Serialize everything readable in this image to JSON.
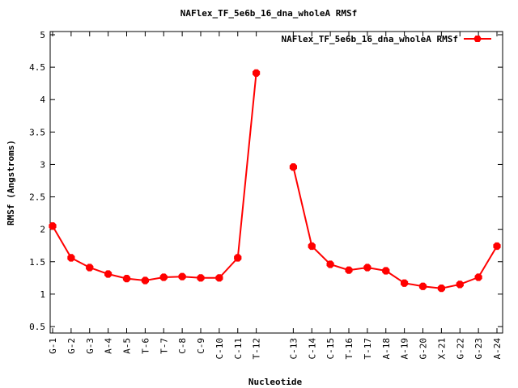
{
  "chart_data": {
    "type": "line",
    "title": "NAFlex_TF_5e6b_16_dna_wholeA RMSf",
    "xlabel": "Nucleotide",
    "ylabel": "RMSf (Angstroms)",
    "ylim": [
      0.4,
      5.05
    ],
    "yticks": [
      "0.5",
      "1",
      "1.5",
      "2",
      "2.5",
      "3",
      "3.5",
      "4",
      "4.5",
      "5"
    ],
    "grid": false,
    "legend_position": "top-right",
    "colors": {
      "series": "#ff0000",
      "axis": "#000000"
    },
    "categories": [
      "G-1",
      "G-2",
      "G-3",
      "A-4",
      "A-5",
      "T-6",
      "T-7",
      "C-8",
      "C-9",
      "C-10",
      "C-11",
      "T-12",
      "",
      "C-13",
      "C-14",
      "C-15",
      "T-16",
      "T-17",
      "A-18",
      "A-19",
      "G-20",
      "X-21",
      "G-22",
      "G-23",
      "A-24"
    ],
    "series": [
      {
        "name": "NAFlex_TF_5e6b_16_dna_wholeA RMSf",
        "values": [
          2.05,
          1.56,
          1.41,
          1.31,
          1.24,
          1.21,
          1.26,
          1.27,
          1.25,
          1.25,
          1.56,
          4.41,
          null,
          2.96,
          1.74,
          1.46,
          1.37,
          1.41,
          1.36,
          1.17,
          1.12,
          1.09,
          1.15,
          1.26,
          1.74
        ]
      }
    ]
  }
}
